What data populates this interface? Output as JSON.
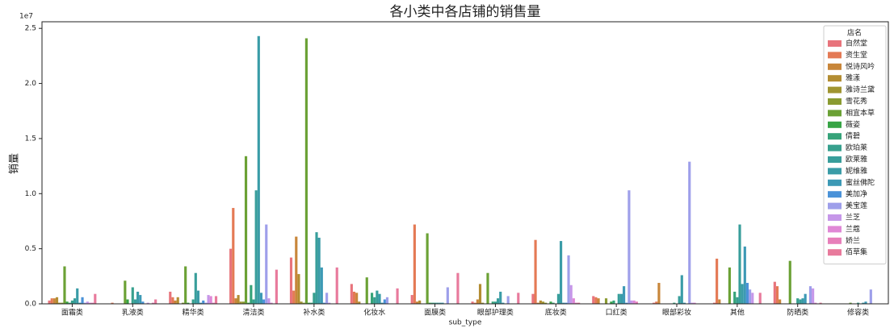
{
  "chart_data": {
    "type": "bar",
    "title": "各小类中各店铺的销售量",
    "x_label": "sub_type",
    "y_label": "销量",
    "y_offset_label": "1e7",
    "legend_title": "店名",
    "legend": "upper right",
    "grid": false,
    "categories": [
      "面霜类",
      "乳液类",
      "精华类",
      "清洁类",
      "补水类",
      "化妆水",
      "面膜类",
      "眼部护理类",
      "底妆类",
      "口红类",
      "眼部彩妆",
      "其他",
      "防晒类",
      "修容类"
    ],
    "ylim": [
      0,
      2.56
    ],
    "yticks": [
      {
        "value": 0,
        "label": "0.0"
      },
      0.5,
      {
        "value": 1,
        "label": "1.0"
      },
      1.5,
      {
        "value": 2,
        "label": "2.0"
      },
      2.5
    ],
    "series": [
      {
        "name": "自然堂",
        "color": "#e8747c",
        "values": [
          0.03,
          0.0,
          0.11,
          0.5,
          0.42,
          0.18,
          0.08,
          0.02,
          0.09,
          0.07,
          0.01,
          0.01,
          0.2,
          0.0
        ]
      },
      {
        "name": "资生堂",
        "color": "#e47a55",
        "values": [
          0.05,
          0.01,
          0.06,
          0.87,
          0.12,
          0.11,
          0.72,
          0.01,
          0.58,
          0.06,
          0.02,
          0.41,
          0.16,
          0.0
        ]
      },
      {
        "name": "悦诗风吟",
        "color": "#c8863a",
        "values": [
          0.05,
          0.0,
          0.03,
          0.05,
          0.61,
          0.1,
          0.02,
          0.04,
          0.01,
          0.05,
          0.19,
          0.04,
          0.04,
          0.0
        ]
      },
      {
        "name": "雅漾",
        "color": "#b38d32",
        "values": [
          0.06,
          0.0,
          0.06,
          0.08,
          0.27,
          0.02,
          0.03,
          0.18,
          0.03,
          0.0,
          0.0,
          0.0,
          0.0,
          0.0
        ]
      },
      {
        "name": "雅诗兰黛",
        "color": "#a09531",
        "values": [
          0.01,
          0.0,
          0.0,
          0.02,
          0.02,
          0.0,
          0.0,
          0.01,
          0.02,
          0.0,
          0.0,
          0.0,
          0.0,
          0.0
        ]
      },
      {
        "name": "雪花秀",
        "color": "#8a9b31",
        "values": [
          0.01,
          0.0,
          0.01,
          0.02,
          0.01,
          0.0,
          0.0,
          0.0,
          0.01,
          0.05,
          0.0,
          0.0,
          0.0,
          0.0
        ]
      },
      {
        "name": "相宜本草",
        "color": "#6ba135",
        "values": [
          0.34,
          0.21,
          0.34,
          1.34,
          2.41,
          0.24,
          0.64,
          0.28,
          0.0,
          0.0,
          0.0,
          0.33,
          0.39,
          0.01
        ]
      },
      {
        "name": "薇姿",
        "color": "#37a445",
        "values": [
          0.02,
          0.04,
          0.01,
          0.01,
          0.01,
          0.0,
          0.01,
          0.0,
          0.02,
          0.02,
          0.0,
          0.0,
          0.0,
          0.0
        ]
      },
      {
        "name": "倩碧",
        "color": "#36a379",
        "values": [
          0.01,
          0.0,
          0.0,
          0.17,
          0.01,
          0.1,
          0.01,
          0.02,
          0.01,
          0.03,
          0.01,
          0.11,
          0.0,
          0.0
        ]
      },
      {
        "name": "欧珀莱",
        "color": "#37a08e",
        "values": [
          0.03,
          0.15,
          0.04,
          0.04,
          0.1,
          0.06,
          0.01,
          0.02,
          0.0,
          0.0,
          0.0,
          0.06,
          0.05,
          0.01
        ]
      },
      {
        "name": "欧莱雅",
        "color": "#389e9b",
        "values": [
          0.05,
          0.04,
          0.28,
          1.03,
          0.65,
          0.12,
          0.01,
          0.05,
          0.09,
          0.09,
          0.07,
          0.72,
          0.04,
          0.0
        ]
      },
      {
        "name": "妮维雅",
        "color": "#3a9ca7",
        "values": [
          0.14,
          0.11,
          0.12,
          2.43,
          0.6,
          0.09,
          0.01,
          0.11,
          0.57,
          0.09,
          0.26,
          0.18,
          0.05,
          0.01
        ]
      },
      {
        "name": "蜜丝佛陀",
        "color": "#3c99b5",
        "values": [
          0.01,
          0.08,
          0.01,
          0.1,
          0.33,
          0.01,
          0.01,
          0.01,
          0.01,
          0.16,
          0.01,
          0.52,
          0.09,
          0.02
        ]
      },
      {
        "name": "美加净",
        "color": "#4a92d8",
        "values": [
          0.06,
          0.02,
          0.03,
          0.04,
          0.01,
          0.04,
          0.0,
          0.0,
          0.01,
          0.01,
          0.0,
          0.19,
          0.0,
          0.0
        ]
      },
      {
        "name": "美宝莲",
        "color": "#9e9fea",
        "values": [
          0.01,
          0.0,
          0.01,
          0.72,
          0.1,
          0.06,
          0.15,
          0.07,
          0.44,
          1.03,
          1.29,
          0.13,
          0.16,
          0.13
        ]
      },
      {
        "name": "兰芝",
        "color": "#c697e9",
        "values": [
          0.02,
          0.01,
          0.08,
          0.05,
          0.01,
          0.0,
          0.0,
          0.0,
          0.17,
          0.03,
          0.01,
          0.1,
          0.14,
          0.0
        ]
      },
      {
        "name": "兰蔻",
        "color": "#e088d6",
        "values": [
          0.01,
          0.0,
          0.07,
          0.01,
          0.0,
          0.0,
          0.0,
          0.0,
          0.05,
          0.03,
          0.01,
          0.0,
          0.01,
          0.0
        ]
      },
      {
        "name": "娇兰",
        "color": "#e77fba",
        "values": [
          0.01,
          0.01,
          0.01,
          0.0,
          0.0,
          0.0,
          0.0,
          0.0,
          0.01,
          0.02,
          0.0,
          0.0,
          0.0,
          0.0
        ]
      },
      {
        "name": "佰草集",
        "color": "#e87a9c",
        "values": [
          0.09,
          0.04,
          0.07,
          0.31,
          0.33,
          0.14,
          0.28,
          0.1,
          0.01,
          0.0,
          0.0,
          0.1,
          0.01,
          0.0
        ]
      }
    ]
  }
}
